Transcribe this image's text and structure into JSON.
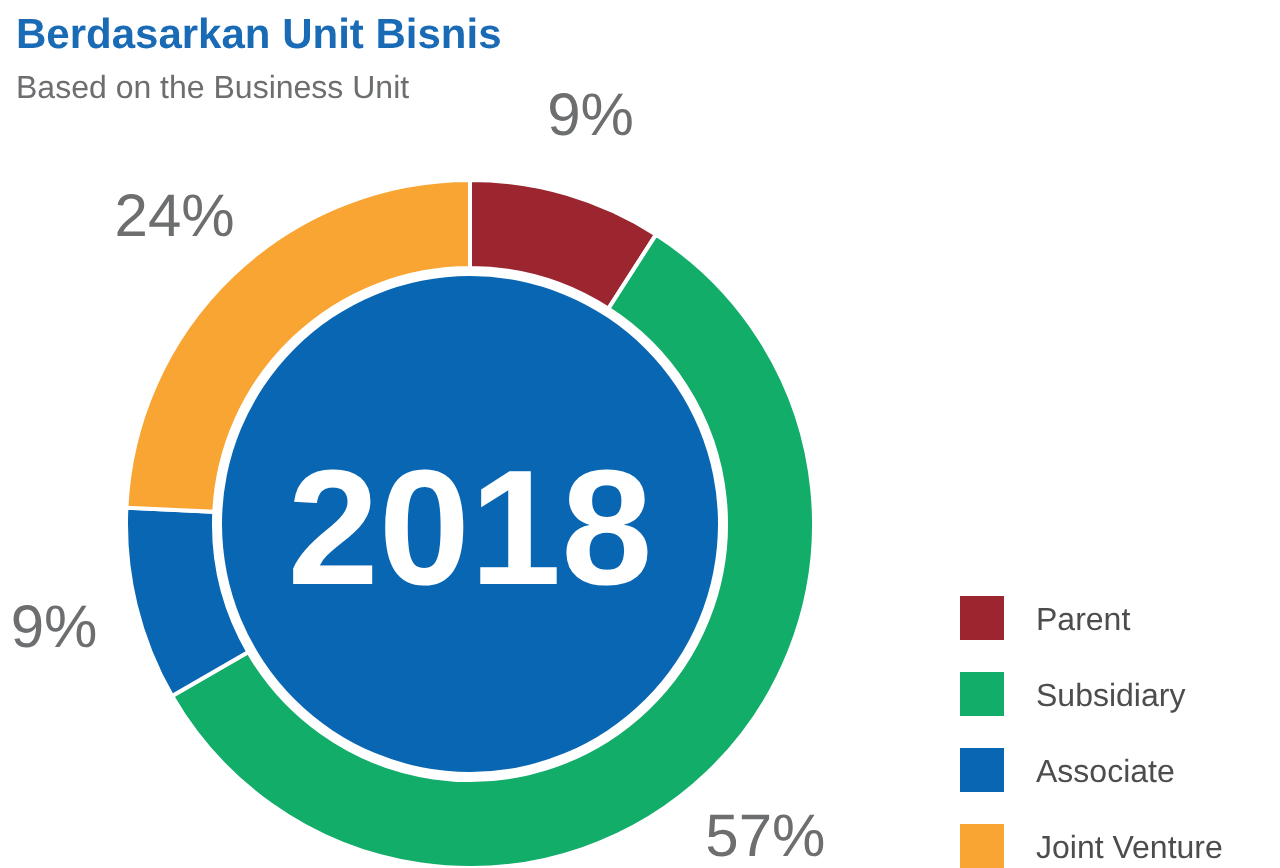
{
  "chart_data": {
    "type": "donut",
    "title": "Berdasarkan Unit Bisnis",
    "subtitle": "Based on the Business Unit",
    "annotations": [
      "2018"
    ],
    "categories": [
      "Parent",
      "Subsidiary",
      "Associate",
      "Joint Venture"
    ],
    "values": [
      9,
      57,
      9,
      24
    ],
    "colors": [
      "#9b2630",
      "#13ad6a",
      "#0866b3",
      "#f9a533"
    ],
    "value_labels": [
      "9%",
      "57%",
      "9%",
      "24%"
    ],
    "legend": "bottom right"
  }
}
